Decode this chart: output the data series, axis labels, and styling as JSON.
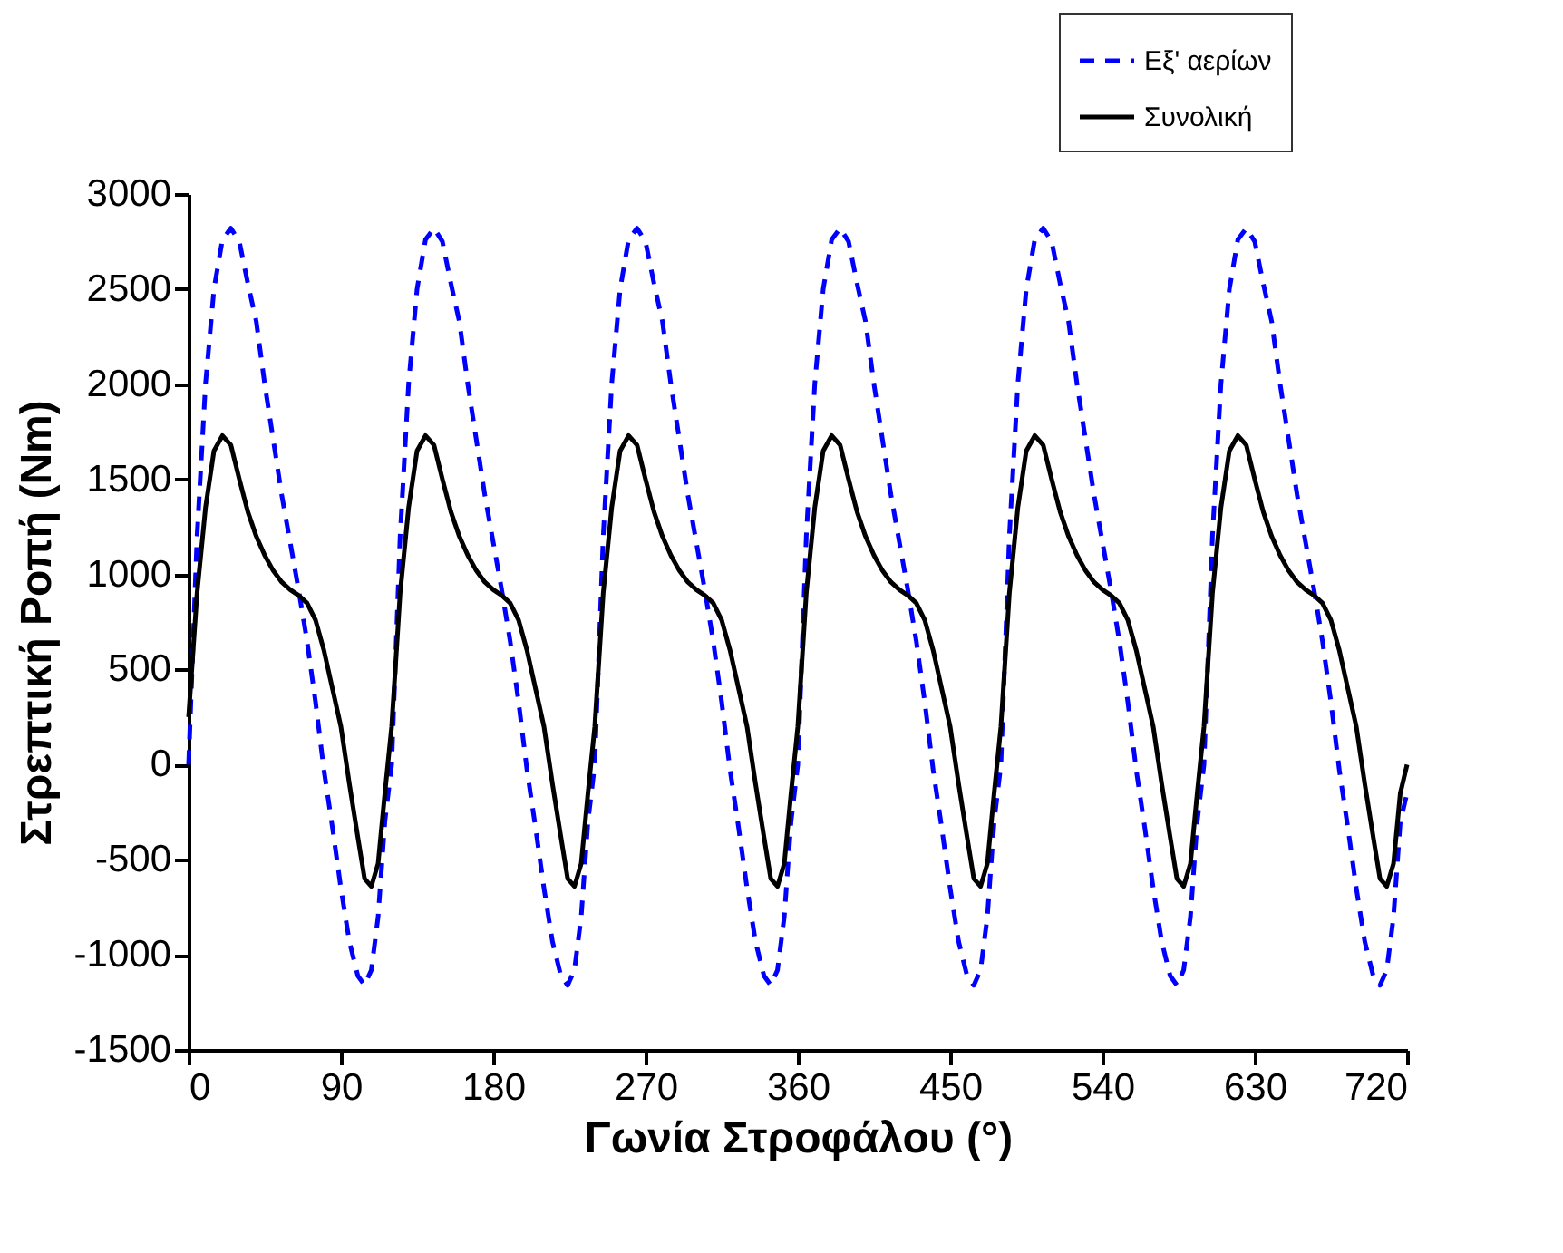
{
  "chart_data": {
    "type": "line",
    "xlabel": "Γωνία Στροφάλου (°)",
    "ylabel": "Στρεπτική Ροπή (Nm)",
    "x": [
      0,
      5,
      10,
      15,
      20,
      25,
      30,
      35,
      40,
      45,
      50,
      55,
      60,
      65,
      70,
      75,
      80,
      85,
      90,
      95,
      100,
      104,
      108,
      112,
      116,
      120,
      125,
      130,
      135,
      140,
      145,
      150,
      155,
      160,
      165,
      170,
      175,
      180,
      185,
      190,
      195,
      200,
      205,
      210,
      215,
      220,
      224,
      228,
      232,
      236,
      240,
      245,
      250,
      255,
      260,
      265,
      270,
      275,
      280,
      285,
      290,
      295,
      300,
      305,
      310,
      315,
      320,
      325,
      330,
      335,
      340,
      344,
      348,
      352,
      356,
      360,
      365,
      370,
      375,
      380,
      385,
      390,
      395,
      400,
      405,
      410,
      415,
      420,
      425,
      430,
      435,
      440,
      445,
      450,
      455,
      460,
      464,
      468,
      472,
      476,
      480,
      485,
      490,
      495,
      500,
      505,
      510,
      515,
      520,
      525,
      530,
      535,
      540,
      545,
      550,
      555,
      560,
      565,
      570,
      575,
      580,
      584,
      588,
      592,
      596,
      600,
      605,
      610,
      615,
      620,
      625,
      630,
      635,
      640,
      645,
      650,
      655,
      660,
      665,
      670,
      675,
      680,
      685,
      690,
      695,
      700,
      704,
      708,
      712,
      716,
      720
    ],
    "series": [
      {
        "name": "Εξ' αερίων",
        "color": "#0000ff",
        "line_style": "dashed",
        "values": [
          0,
          1200,
          2000,
          2500,
          2760,
          2820,
          2750,
          2530,
          2330,
          2000,
          1710,
          1420,
          1170,
          920,
          650,
          330,
          -30,
          -330,
          -650,
          -930,
          -1110,
          -1160,
          -1080,
          -800,
          -300,
          0,
          1200,
          2000,
          2500,
          2760,
          2820,
          2750,
          2530,
          2330,
          2000,
          1710,
          1420,
          1170,
          920,
          650,
          330,
          -30,
          -330,
          -650,
          -930,
          -1110,
          -1160,
          -1080,
          -800,
          -300,
          0,
          1200,
          2000,
          2500,
          2760,
          2820,
          2750,
          2530,
          2330,
          2000,
          1710,
          1420,
          1170,
          920,
          650,
          330,
          -30,
          -330,
          -650,
          -930,
          -1110,
          -1160,
          -1080,
          -800,
          -300,
          0,
          1200,
          2000,
          2500,
          2760,
          2820,
          2750,
          2530,
          2330,
          2000,
          1710,
          1420,
          1170,
          920,
          650,
          330,
          -30,
          -330,
          -650,
          -930,
          -1110,
          -1160,
          -1080,
          -800,
          -300,
          0,
          1200,
          2000,
          2500,
          2760,
          2820,
          2750,
          2530,
          2330,
          2000,
          1710,
          1420,
          1170,
          920,
          650,
          330,
          -30,
          -330,
          -650,
          -930,
          -1110,
          -1160,
          -1080,
          -800,
          -300,
          0,
          1200,
          2000,
          2500,
          2760,
          2820,
          2750,
          2530,
          2330,
          2000,
          1710,
          1420,
          1170,
          920,
          650,
          330,
          -30,
          -330,
          -650,
          -930,
          -1110,
          -1160,
          -1080,
          -800,
          -300,
          -150
        ]
      },
      {
        "name": "Συνολική",
        "color": "#000000",
        "line_style": "solid",
        "values": [
          250,
          900,
          1350,
          1650,
          1730,
          1680,
          1500,
          1330,
          1200,
          1100,
          1020,
          960,
          920,
          890,
          850,
          760,
          600,
          400,
          200,
          -100,
          -380,
          -600,
          -640,
          -520,
          -150,
          200,
          900,
          1350,
          1650,
          1730,
          1680,
          1500,
          1330,
          1200,
          1100,
          1020,
          960,
          920,
          890,
          850,
          760,
          600,
          400,
          200,
          -100,
          -380,
          -600,
          -640,
          -520,
          -150,
          200,
          900,
          1350,
          1650,
          1730,
          1680,
          1500,
          1330,
          1200,
          1100,
          1020,
          960,
          920,
          890,
          850,
          760,
          600,
          400,
          200,
          -100,
          -380,
          -600,
          -640,
          -520,
          -150,
          200,
          900,
          1350,
          1650,
          1730,
          1680,
          1500,
          1330,
          1200,
          1100,
          1020,
          960,
          920,
          890,
          850,
          760,
          600,
          400,
          200,
          -100,
          -380,
          -600,
          -640,
          -520,
          -150,
          200,
          900,
          1350,
          1650,
          1730,
          1680,
          1500,
          1330,
          1200,
          1100,
          1020,
          960,
          920,
          890,
          850,
          760,
          600,
          400,
          200,
          -100,
          -380,
          -600,
          -640,
          -520,
          -150,
          200,
          900,
          1350,
          1650,
          1730,
          1680,
          1500,
          1330,
          1200,
          1100,
          1020,
          960,
          920,
          890,
          850,
          760,
          600,
          400,
          200,
          -100,
          -380,
          -600,
          -640,
          -520,
          -150,
          0
        ]
      }
    ],
    "xlim": [
      0,
      720
    ],
    "xticks": [
      0,
      90,
      180,
      270,
      360,
      450,
      540,
      630,
      720
    ],
    "ylim": [
      -1500,
      3000
    ],
    "yticks": [
      -1500,
      -1000,
      -500,
      0,
      500,
      1000,
      1500,
      2000,
      2500,
      3000
    ],
    "grid": false,
    "legend": "top right"
  }
}
